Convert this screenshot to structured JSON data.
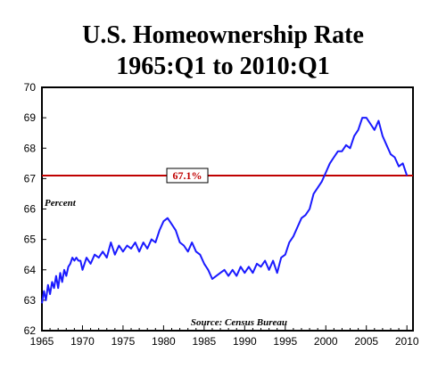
{
  "chart_data": {
    "type": "line",
    "title": "U.S. Homeownership Rate",
    "subtitle": "1965:Q1 to 2010:Q1",
    "ylabel": "Percent",
    "source": "Source: Census Bureau",
    "xlim": [
      1965,
      2010.75
    ],
    "ylim": [
      62,
      70
    ],
    "xticks": [
      1965,
      1970,
      1975,
      1980,
      1985,
      1990,
      1995,
      2000,
      2005,
      2010
    ],
    "yticks": [
      62,
      63,
      64,
      65,
      66,
      67,
      68,
      69,
      70
    ],
    "grid": false,
    "reference_line": {
      "value": 67.1,
      "label": "67.1%",
      "color": "#c00000"
    },
    "line_color": "#1a1aff",
    "series": [
      {
        "x": [
          1965.0,
          1965.25,
          1965.5,
          1965.75,
          1966.0,
          1966.25,
          1966.5,
          1966.75,
          1967.0,
          1967.25,
          1967.5,
          1967.75,
          1968.0,
          1968.25,
          1968.5,
          1968.75,
          1969.0,
          1969.25,
          1969.5,
          1969.75,
          1970.0,
          1970.5,
          1971.0,
          1971.5,
          1972.0,
          1972.5,
          1973.0,
          1973.5,
          1974.0,
          1974.5,
          1975.0,
          1975.5,
          1976.0,
          1976.5,
          1977.0,
          1977.5,
          1978.0,
          1978.5,
          1979.0,
          1979.5,
          1980.0,
          1980.5,
          1981.0,
          1981.5,
          1982.0,
          1982.5,
          1983.0,
          1983.5,
          1984.0,
          1984.5,
          1985.0,
          1985.5,
          1986.0,
          1986.5,
          1987.0,
          1987.5,
          1988.0,
          1988.5,
          1989.0,
          1989.5,
          1990.0,
          1990.5,
          1991.0,
          1991.5,
          1992.0,
          1992.5,
          1993.0,
          1993.5,
          1994.0,
          1994.5,
          1995.0,
          1995.5,
          1996.0,
          1996.5,
          1997.0,
          1997.5,
          1998.0,
          1998.5,
          1999.0,
          1999.5,
          2000.0,
          2000.5,
          2001.0,
          2001.5,
          2002.0,
          2002.5,
          2003.0,
          2003.5,
          2004.0,
          2004.5,
          2005.0,
          2005.5,
          2006.0,
          2006.5,
          2007.0,
          2007.5,
          2008.0,
          2008.5,
          2009.0,
          2009.5,
          2010.0
        ],
        "y": [
          62.9,
          63.3,
          63.0,
          63.5,
          63.2,
          63.6,
          63.4,
          63.8,
          63.4,
          63.9,
          63.6,
          64.0,
          63.8,
          64.1,
          64.2,
          64.4,
          64.3,
          64.4,
          64.3,
          64.3,
          64.0,
          64.4,
          64.2,
          64.5,
          64.4,
          64.6,
          64.4,
          64.9,
          64.5,
          64.8,
          64.6,
          64.8,
          64.7,
          64.9,
          64.6,
          64.9,
          64.7,
          65.0,
          64.9,
          65.3,
          65.6,
          65.7,
          65.5,
          65.3,
          64.9,
          64.8,
          64.6,
          64.9,
          64.6,
          64.5,
          64.2,
          64.0,
          63.7,
          63.8,
          63.9,
          64.0,
          63.8,
          64.0,
          63.8,
          64.1,
          63.9,
          64.1,
          63.9,
          64.2,
          64.1,
          64.3,
          64.0,
          64.3,
          63.9,
          64.4,
          64.5,
          64.9,
          65.1,
          65.4,
          65.7,
          65.8,
          66.0,
          66.5,
          66.7,
          66.9,
          67.2,
          67.5,
          67.7,
          67.9,
          67.9,
          68.1,
          68.0,
          68.4,
          68.6,
          69.0,
          69.0,
          68.8,
          68.6,
          68.9,
          68.4,
          68.1,
          67.8,
          67.7,
          67.4,
          67.5,
          67.1
        ]
      }
    ]
  }
}
